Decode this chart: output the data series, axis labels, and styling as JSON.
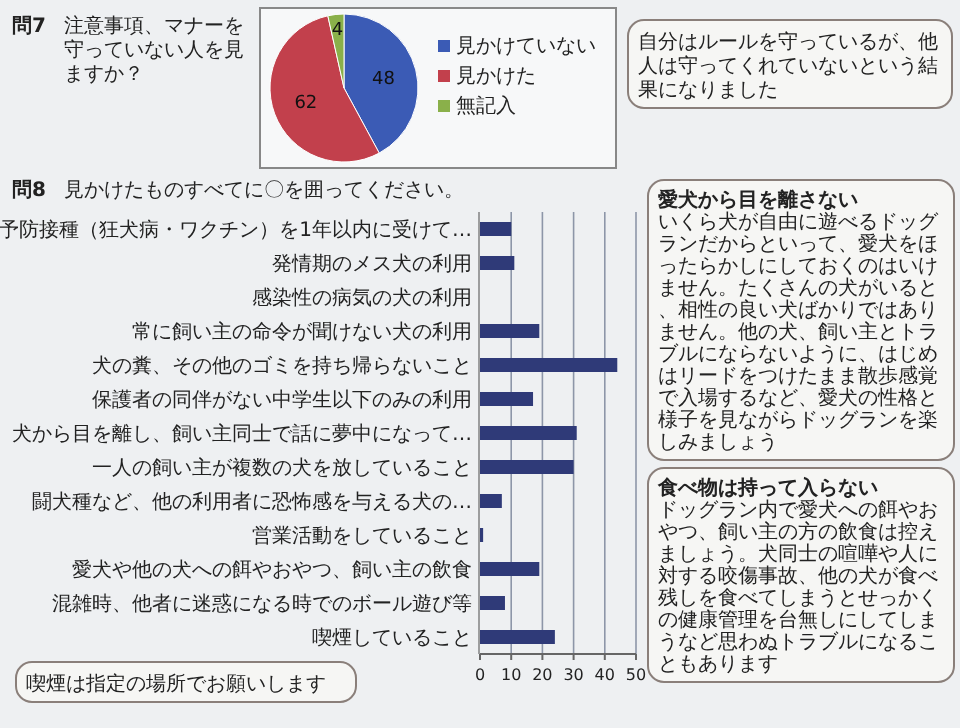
{
  "chart_data": [
    {
      "type": "pie",
      "title": "問7",
      "subtitle": "注意事項、マナーを守っていない人を見ますか？",
      "categories": [
        "見かけていない",
        "見かけた",
        "無記入"
      ],
      "values": [
        48,
        62,
        4
      ],
      "colors": [
        "#3b5bb5",
        "#c2404c",
        "#8ab04a"
      ],
      "data_labels": true,
      "legend": "right",
      "annotations": [
        "自分はルールを守っているが、他人は守ってくれていないという結果になりました"
      ]
    },
    {
      "type": "bar",
      "orientation": "horizontal",
      "title": "問8",
      "subtitle": "見かけたものすべてに〇を囲ってください。",
      "categories": [
        "予防接種（狂犬病・ワクチン）を1年以内に受けて…",
        "発情期のメス犬の利用",
        "感染性の病気の犬の利用",
        "常に飼い主の命令が聞けない犬の利用",
        "犬の糞、その他のゴミを持ち帰らないこと",
        "保護者の同伴がない中学生以下のみの利用",
        "犬から目を離し、飼い主同士で話に夢中になって…",
        "一人の飼い主が複数の犬を放していること",
        "闘犬種など、他の利用者に恐怖感を与える犬の…",
        "営業活動をしていること",
        "愛犬や他の犬への餌やおやつ、飼い主の飲食",
        "混雑時、他者に迷惑になる時でのボール遊び等",
        "喫煙していること"
      ],
      "values": [
        10,
        11,
        0,
        19,
        44,
        17,
        31,
        30,
        7,
        1,
        19,
        8,
        24
      ],
      "color": "#2f3a78",
      "xlim": [
        0,
        50
      ],
      "xticks": [
        0,
        10,
        20,
        30,
        40,
        50
      ],
      "grid": "x",
      "annotations": [
        "愛犬から目を離さない",
        "いくら犬が自由に遊べるドッグランだからといって、愛犬をほったらかしにしておくのはいけません。たくさんの犬がいると、相性の良い犬ばかりではありません。他の犬、飼い主とトラブルにならないように、はじめはリードをつけたまま散歩感覚で入場するなど、愛犬の性格と様子を見ながらドッグランを楽しみましょう",
        "食べ物は持って入らない",
        "ドッグラン内で愛犬への餌やおやつ、飼い主の方の飲食は控えましょう。犬同士の喧嘩や人に対する咬傷事故、他の犬が食べ残しを食べてしまうとせっかくの健康管理を台無しにしてしまうなど思わぬトラブルになることもあります",
        "喫煙は指定の場所でお願いします"
      ]
    }
  ]
}
